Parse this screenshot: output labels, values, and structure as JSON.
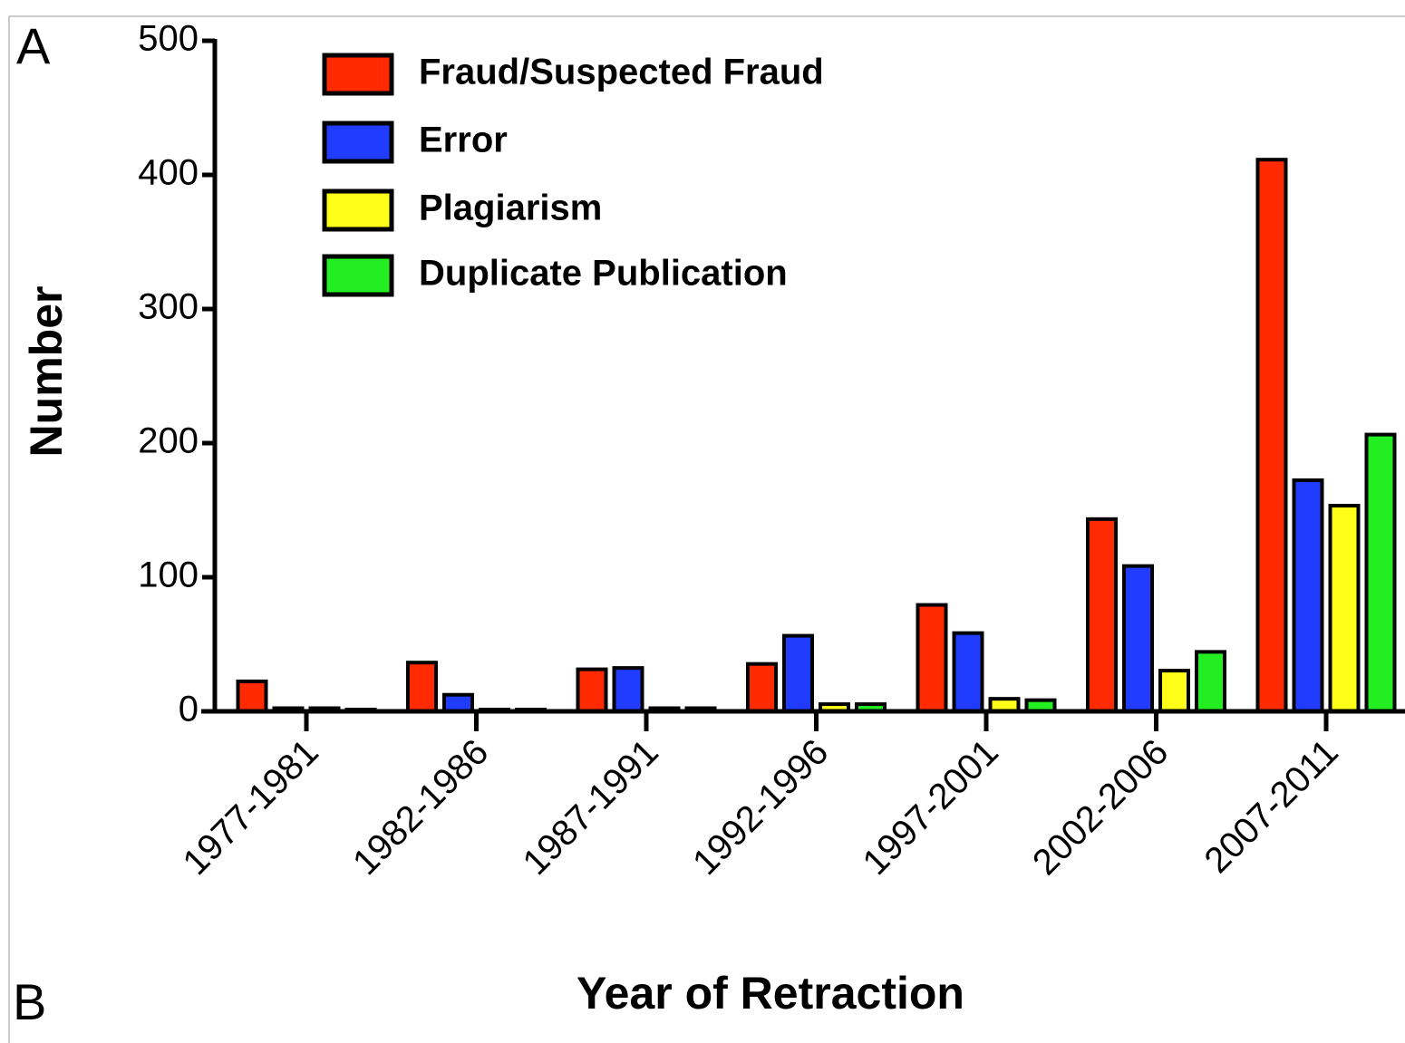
{
  "panel_labels": [
    "A",
    "B"
  ],
  "chart_data": {
    "type": "bar",
    "x_label": "Year of Retraction",
    "y_label": "Number",
    "categories": [
      "1977-1981",
      "1982-1986",
      "1987-1991",
      "1992-1996",
      "1997-2001",
      "2002-2006",
      "2007-2011"
    ],
    "series": [
      {
        "name": "Fraud/Suspected Fraud",
        "color": "#ff2a00",
        "values": [
          21,
          35,
          30,
          34,
          78,
          142,
          410
        ]
      },
      {
        "name": "Error",
        "color": "#1f3cff",
        "values": [
          1,
          11,
          31,
          55,
          57,
          107,
          171
        ]
      },
      {
        "name": "Plagiarism",
        "color": "#ffff1a",
        "values": [
          1,
          0,
          1,
          4,
          8,
          29,
          152
        ]
      },
      {
        "name": "Duplicate Publication",
        "color": "#22ee22",
        "values": [
          0,
          0,
          1,
          4,
          7,
          43,
          205
        ]
      }
    ],
    "ylim": [
      0,
      500
    ],
    "yticks": [
      0,
      100,
      200,
      300,
      400,
      500
    ],
    "legend": "upper left"
  }
}
